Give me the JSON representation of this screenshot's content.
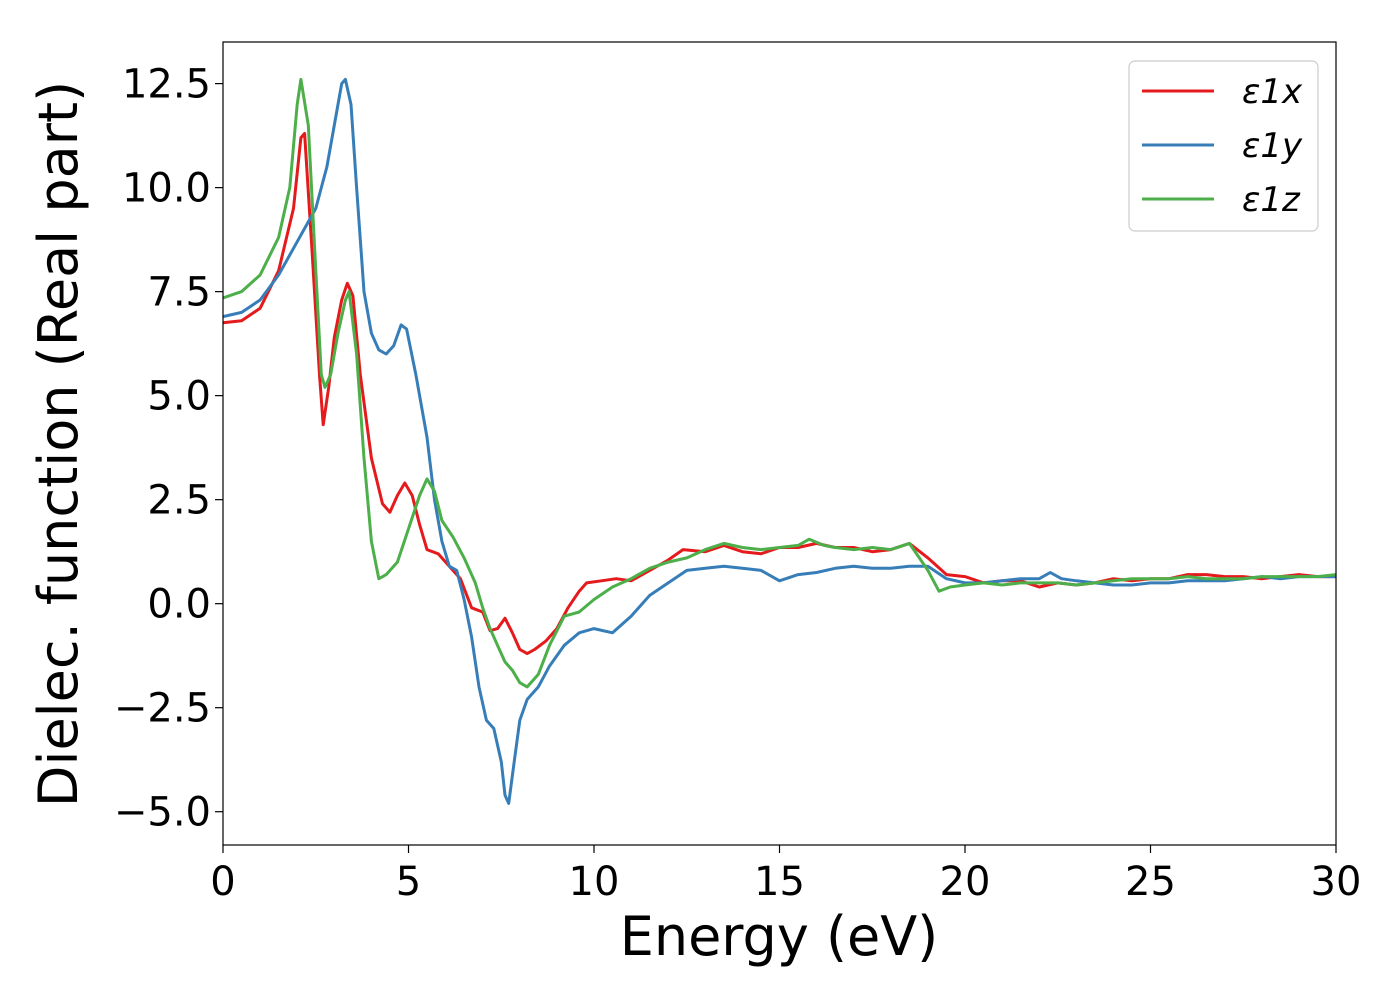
{
  "chart_data": {
    "type": "line",
    "title": "",
    "xlabel": "Energy (eV)",
    "ylabel": "Dielec. function (Real part)",
    "xlim": [
      0,
      30
    ],
    "ylim": [
      -5.8,
      13.5
    ],
    "xticks": [
      0,
      5,
      10,
      15,
      20,
      25,
      30
    ],
    "xtick_labels": [
      "0",
      "5",
      "10",
      "15",
      "20",
      "25",
      "30"
    ],
    "yticks": [
      -5.0,
      -2.5,
      0.0,
      2.5,
      5.0,
      7.5,
      10.0,
      12.5
    ],
    "ytick_labels": [
      "−5.0",
      "−2.5",
      "0.0",
      "2.5",
      "5.0",
      "7.5",
      "10.0",
      "12.5"
    ],
    "grid": false,
    "legend_position": "top-right",
    "series": [
      {
        "name": "ε1x",
        "color": "#e41a1c",
        "points": [
          [
            0,
            6.75
          ],
          [
            0.5,
            6.8
          ],
          [
            1.0,
            7.1
          ],
          [
            1.5,
            8.0
          ],
          [
            1.9,
            9.5
          ],
          [
            2.1,
            11.2
          ],
          [
            2.2,
            11.3
          ],
          [
            2.4,
            8.5
          ],
          [
            2.6,
            5.5
          ],
          [
            2.7,
            4.3
          ],
          [
            2.85,
            5.2
          ],
          [
            3.0,
            6.4
          ],
          [
            3.2,
            7.3
          ],
          [
            3.35,
            7.7
          ],
          [
            3.5,
            7.4
          ],
          [
            3.7,
            5.5
          ],
          [
            4.0,
            3.5
          ],
          [
            4.3,
            2.4
          ],
          [
            4.5,
            2.2
          ],
          [
            4.7,
            2.6
          ],
          [
            4.9,
            2.9
          ],
          [
            5.1,
            2.6
          ],
          [
            5.3,
            1.9
          ],
          [
            5.5,
            1.3
          ],
          [
            5.8,
            1.2
          ],
          [
            6.1,
            0.9
          ],
          [
            6.4,
            0.6
          ],
          [
            6.7,
            -0.1
          ],
          [
            7.0,
            -0.2
          ],
          [
            7.2,
            -0.65
          ],
          [
            7.4,
            -0.6
          ],
          [
            7.6,
            -0.35
          ],
          [
            7.8,
            -0.7
          ],
          [
            8.0,
            -1.1
          ],
          [
            8.2,
            -1.2
          ],
          [
            8.4,
            -1.1
          ],
          [
            8.7,
            -0.9
          ],
          [
            9.0,
            -0.6
          ],
          [
            9.3,
            -0.1
          ],
          [
            9.6,
            0.3
          ],
          [
            9.8,
            0.5
          ],
          [
            10.2,
            0.55
          ],
          [
            10.6,
            0.6
          ],
          [
            11.0,
            0.55
          ],
          [
            11.5,
            0.8
          ],
          [
            12.0,
            1.05
          ],
          [
            12.4,
            1.3
          ],
          [
            13.0,
            1.25
          ],
          [
            13.5,
            1.4
          ],
          [
            14.0,
            1.25
          ],
          [
            14.5,
            1.2
          ],
          [
            15.0,
            1.35
          ],
          [
            15.5,
            1.35
          ],
          [
            16.0,
            1.45
          ],
          [
            16.5,
            1.35
          ],
          [
            17.0,
            1.35
          ],
          [
            17.5,
            1.25
          ],
          [
            18.0,
            1.3
          ],
          [
            18.5,
            1.45
          ],
          [
            19.0,
            1.1
          ],
          [
            19.5,
            0.7
          ],
          [
            20.0,
            0.65
          ],
          [
            20.5,
            0.5
          ],
          [
            21.0,
            0.55
          ],
          [
            21.5,
            0.55
          ],
          [
            22.0,
            0.4
          ],
          [
            22.5,
            0.5
          ],
          [
            23.0,
            0.45
          ],
          [
            23.5,
            0.5
          ],
          [
            24.0,
            0.6
          ],
          [
            24.5,
            0.55
          ],
          [
            25.0,
            0.6
          ],
          [
            25.5,
            0.6
          ],
          [
            26.0,
            0.7
          ],
          [
            26.5,
            0.7
          ],
          [
            27.0,
            0.65
          ],
          [
            27.5,
            0.65
          ],
          [
            28.0,
            0.6
          ],
          [
            28.5,
            0.65
          ],
          [
            29.0,
            0.7
          ],
          [
            29.5,
            0.65
          ],
          [
            30.0,
            0.65
          ]
        ]
      },
      {
        "name": "ε1y",
        "color": "#377eb8",
        "points": [
          [
            0,
            6.9
          ],
          [
            0.5,
            7.0
          ],
          [
            1.0,
            7.3
          ],
          [
            1.5,
            7.9
          ],
          [
            2.0,
            8.7
          ],
          [
            2.5,
            9.5
          ],
          [
            2.8,
            10.5
          ],
          [
            3.0,
            11.5
          ],
          [
            3.2,
            12.5
          ],
          [
            3.3,
            12.6
          ],
          [
            3.45,
            12.0
          ],
          [
            3.6,
            10.0
          ],
          [
            3.8,
            7.5
          ],
          [
            4.0,
            6.5
          ],
          [
            4.2,
            6.1
          ],
          [
            4.4,
            6.0
          ],
          [
            4.6,
            6.2
          ],
          [
            4.8,
            6.7
          ],
          [
            4.95,
            6.6
          ],
          [
            5.2,
            5.5
          ],
          [
            5.5,
            4.0
          ],
          [
            5.7,
            2.5
          ],
          [
            5.9,
            1.5
          ],
          [
            6.1,
            0.9
          ],
          [
            6.3,
            0.8
          ],
          [
            6.5,
            0.1
          ],
          [
            6.7,
            -0.8
          ],
          [
            6.9,
            -2.0
          ],
          [
            7.1,
            -2.8
          ],
          [
            7.3,
            -3.0
          ],
          [
            7.5,
            -3.8
          ],
          [
            7.6,
            -4.6
          ],
          [
            7.7,
            -4.8
          ],
          [
            7.85,
            -3.8
          ],
          [
            8.0,
            -2.8
          ],
          [
            8.2,
            -2.3
          ],
          [
            8.5,
            -2.0
          ],
          [
            8.8,
            -1.5
          ],
          [
            9.2,
            -1.0
          ],
          [
            9.6,
            -0.7
          ],
          [
            10.0,
            -0.6
          ],
          [
            10.5,
            -0.7
          ],
          [
            11.0,
            -0.3
          ],
          [
            11.5,
            0.2
          ],
          [
            12.0,
            0.5
          ],
          [
            12.5,
            0.8
          ],
          [
            13.0,
            0.85
          ],
          [
            13.5,
            0.9
          ],
          [
            14.0,
            0.85
          ],
          [
            14.5,
            0.8
          ],
          [
            15.0,
            0.55
          ],
          [
            15.5,
            0.7
          ],
          [
            16.0,
            0.75
          ],
          [
            16.5,
            0.85
          ],
          [
            17.0,
            0.9
          ],
          [
            17.5,
            0.85
          ],
          [
            18.0,
            0.85
          ],
          [
            18.5,
            0.9
          ],
          [
            19.0,
            0.9
          ],
          [
            19.5,
            0.6
          ],
          [
            20.0,
            0.5
          ],
          [
            20.5,
            0.5
          ],
          [
            21.0,
            0.55
          ],
          [
            21.5,
            0.6
          ],
          [
            22.0,
            0.6
          ],
          [
            22.3,
            0.75
          ],
          [
            22.6,
            0.6
          ],
          [
            23.0,
            0.55
          ],
          [
            23.5,
            0.5
          ],
          [
            24.0,
            0.45
          ],
          [
            24.5,
            0.45
          ],
          [
            25.0,
            0.5
          ],
          [
            25.5,
            0.5
          ],
          [
            26.0,
            0.55
          ],
          [
            26.5,
            0.55
          ],
          [
            27.0,
            0.55
          ],
          [
            27.5,
            0.6
          ],
          [
            28.0,
            0.65
          ],
          [
            28.5,
            0.6
          ],
          [
            29.0,
            0.65
          ],
          [
            29.5,
            0.65
          ],
          [
            30.0,
            0.65
          ]
        ]
      },
      {
        "name": "ε1z",
        "color": "#4daf4a",
        "points": [
          [
            0,
            7.35
          ],
          [
            0.5,
            7.5
          ],
          [
            1.0,
            7.9
          ],
          [
            1.5,
            8.8
          ],
          [
            1.8,
            10.0
          ],
          [
            2.0,
            12.0
          ],
          [
            2.1,
            12.6
          ],
          [
            2.3,
            11.5
          ],
          [
            2.5,
            8.0
          ],
          [
            2.65,
            5.5
          ],
          [
            2.75,
            5.2
          ],
          [
            2.9,
            5.5
          ],
          [
            3.1,
            6.5
          ],
          [
            3.3,
            7.3
          ],
          [
            3.4,
            7.5
          ],
          [
            3.6,
            6.0
          ],
          [
            3.8,
            3.5
          ],
          [
            4.0,
            1.5
          ],
          [
            4.2,
            0.6
          ],
          [
            4.4,
            0.7
          ],
          [
            4.7,
            1.0
          ],
          [
            5.0,
            1.8
          ],
          [
            5.3,
            2.6
          ],
          [
            5.5,
            3.0
          ],
          [
            5.7,
            2.7
          ],
          [
            5.9,
            2.0
          ],
          [
            6.2,
            1.6
          ],
          [
            6.5,
            1.1
          ],
          [
            6.8,
            0.5
          ],
          [
            7.0,
            -0.1
          ],
          [
            7.2,
            -0.6
          ],
          [
            7.4,
            -1.0
          ],
          [
            7.6,
            -1.4
          ],
          [
            7.8,
            -1.6
          ],
          [
            8.0,
            -1.9
          ],
          [
            8.2,
            -2.0
          ],
          [
            8.5,
            -1.7
          ],
          [
            8.8,
            -1.0
          ],
          [
            9.2,
            -0.3
          ],
          [
            9.6,
            -0.2
          ],
          [
            10.0,
            0.1
          ],
          [
            10.5,
            0.4
          ],
          [
            11.0,
            0.6
          ],
          [
            11.5,
            0.85
          ],
          [
            12.0,
            1.0
          ],
          [
            12.5,
            1.1
          ],
          [
            13.0,
            1.3
          ],
          [
            13.5,
            1.45
          ],
          [
            14.0,
            1.35
          ],
          [
            14.5,
            1.3
          ],
          [
            15.0,
            1.35
          ],
          [
            15.5,
            1.4
          ],
          [
            15.8,
            1.55
          ],
          [
            16.2,
            1.4
          ],
          [
            16.5,
            1.35
          ],
          [
            17.0,
            1.3
          ],
          [
            17.5,
            1.35
          ],
          [
            18.0,
            1.3
          ],
          [
            18.5,
            1.45
          ],
          [
            19.0,
            0.8
          ],
          [
            19.3,
            0.3
          ],
          [
            19.6,
            0.4
          ],
          [
            20.0,
            0.45
          ],
          [
            20.5,
            0.5
          ],
          [
            21.0,
            0.45
          ],
          [
            21.5,
            0.5
          ],
          [
            22.0,
            0.5
          ],
          [
            22.5,
            0.5
          ],
          [
            23.0,
            0.45
          ],
          [
            23.5,
            0.5
          ],
          [
            24.0,
            0.55
          ],
          [
            24.5,
            0.6
          ],
          [
            25.0,
            0.6
          ],
          [
            25.5,
            0.6
          ],
          [
            26.0,
            0.65
          ],
          [
            26.5,
            0.6
          ],
          [
            27.0,
            0.6
          ],
          [
            27.5,
            0.6
          ],
          [
            28.0,
            0.65
          ],
          [
            28.5,
            0.65
          ],
          [
            29.0,
            0.65
          ],
          [
            29.5,
            0.65
          ],
          [
            30.0,
            0.7
          ]
        ]
      }
    ]
  }
}
